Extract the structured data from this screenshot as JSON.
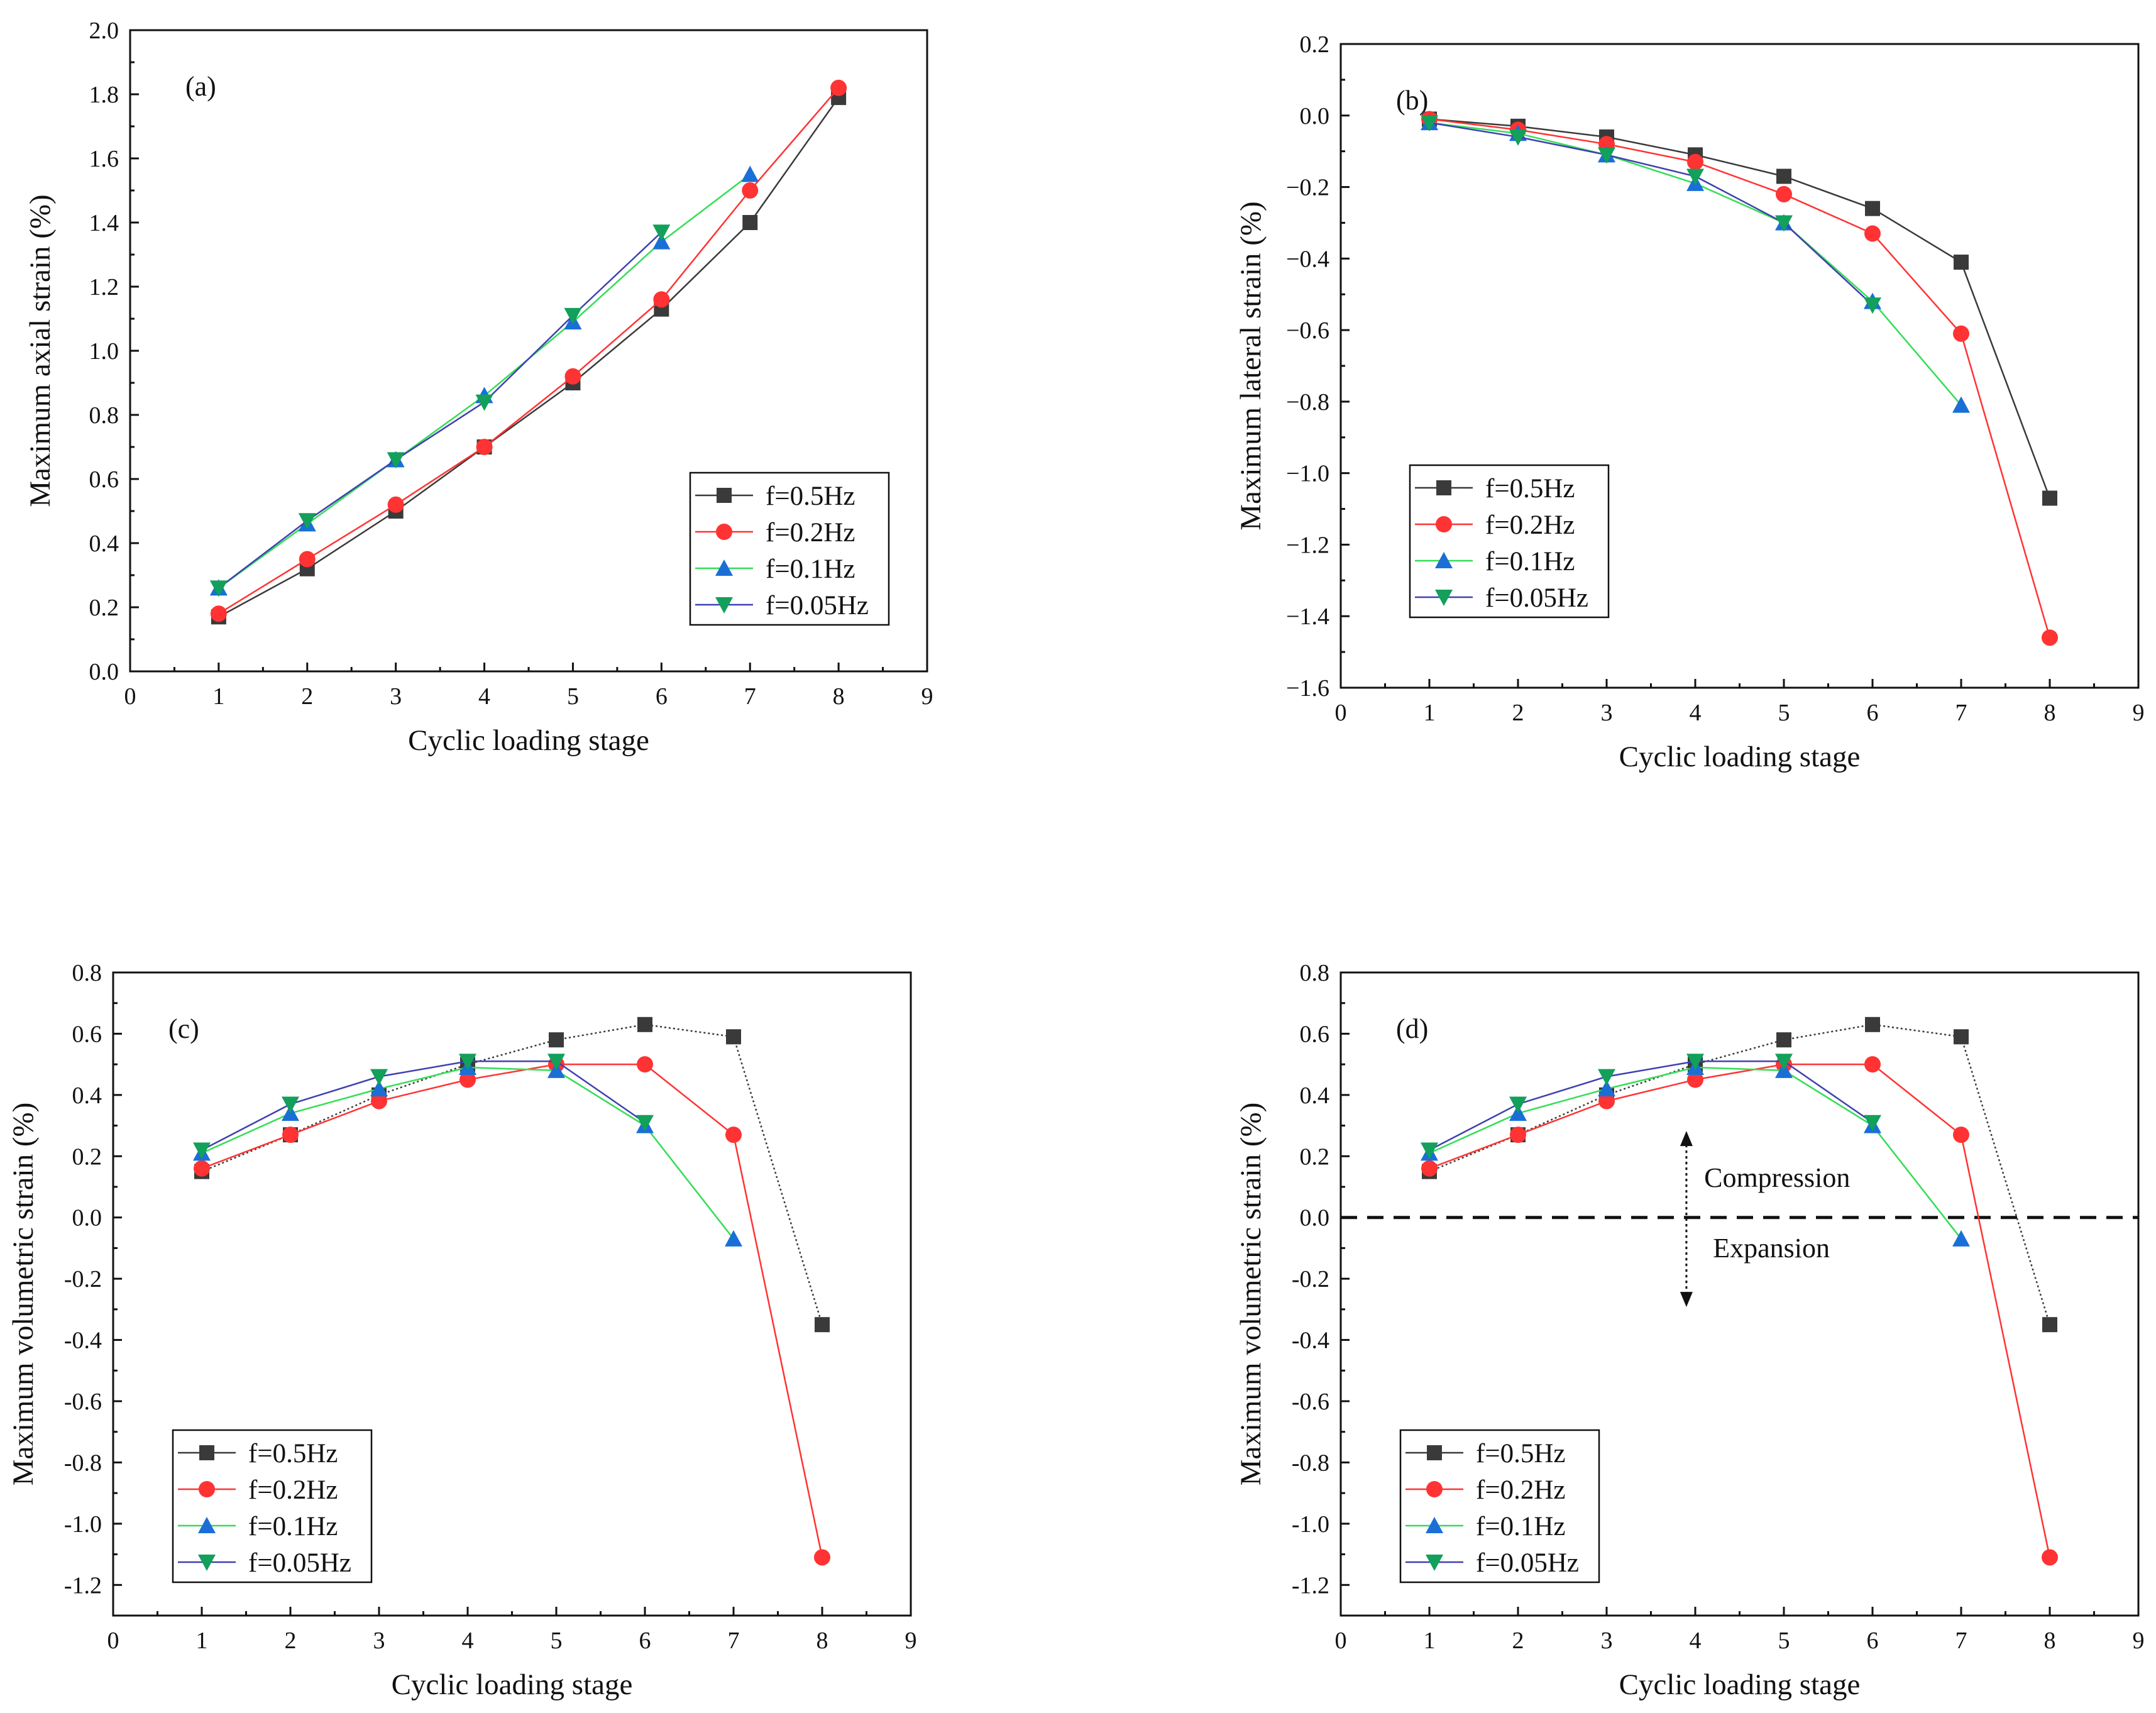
{
  "chart_data": [
    {
      "type": "line",
      "panel_label": "(a)",
      "xlabel": "Cyclic loading stage",
      "ylabel": "Maximum axial strain (%)",
      "xlim": [
        0,
        9
      ],
      "ylim": [
        0.0,
        2.0
      ],
      "xticks": [
        "0",
        "1",
        "2",
        "3",
        "4",
        "5",
        "6",
        "7",
        "8",
        "9"
      ],
      "yticks": [
        "0.0",
        "0.2",
        "0.4",
        "0.6",
        "0.8",
        "1.0",
        "1.2",
        "1.4",
        "1.6",
        "1.8",
        "2.0"
      ],
      "grid": false,
      "legend_position": "center-right",
      "series": [
        {
          "name": "f=0.5Hz",
          "x": [
            1,
            2,
            3,
            4,
            5,
            6,
            7,
            8
          ],
          "values": [
            0.17,
            0.32,
            0.5,
            0.7,
            0.9,
            1.13,
            1.4,
            1.79
          ]
        },
        {
          "name": "f=0.2Hz",
          "x": [
            1,
            2,
            3,
            4,
            5,
            6,
            7,
            8
          ],
          "values": [
            0.18,
            0.35,
            0.52,
            0.7,
            0.92,
            1.16,
            1.5,
            1.82
          ]
        },
        {
          "name": "f=0.1Hz",
          "x": [
            1,
            2,
            3,
            4,
            5,
            6,
            7
          ],
          "values": [
            0.26,
            0.46,
            0.66,
            0.86,
            1.09,
            1.34,
            1.55
          ]
        },
        {
          "name": "f=0.05Hz",
          "x": [
            1,
            2,
            3,
            4,
            5,
            6
          ],
          "values": [
            0.26,
            0.47,
            0.66,
            0.84,
            1.11,
            1.37
          ]
        }
      ]
    },
    {
      "type": "line",
      "panel_label": "(b)",
      "xlabel": "Cyclic loading stage",
      "ylabel": "Maximum lateral strain (%)",
      "xlim": [
        0,
        9
      ],
      "ylim": [
        -1.6,
        0.2
      ],
      "xticks": [
        "0",
        "1",
        "2",
        "3",
        "4",
        "5",
        "6",
        "7",
        "8",
        "9"
      ],
      "yticks": [
        "−1.6",
        "−1.4",
        "−1.2",
        "−1.0",
        "−0.8",
        "−0.6",
        "−0.4",
        "−0.2",
        "0.0",
        "0.2"
      ],
      "grid": false,
      "legend_position": "center-left",
      "series": [
        {
          "name": "f=0.5Hz",
          "x": [
            1,
            2,
            3,
            4,
            5,
            6,
            7,
            8
          ],
          "values": [
            -0.01,
            -0.03,
            -0.06,
            -0.11,
            -0.17,
            -0.26,
            -0.41,
            -1.07
          ]
        },
        {
          "name": "f=0.2Hz",
          "x": [
            1,
            2,
            3,
            4,
            5,
            6,
            7,
            8
          ],
          "values": [
            -0.01,
            -0.04,
            -0.08,
            -0.13,
            -0.22,
            -0.33,
            -0.61,
            -1.46
          ]
        },
        {
          "name": "f=0.1Hz",
          "x": [
            1,
            2,
            3,
            4,
            5,
            6,
            7
          ],
          "values": [
            -0.02,
            -0.05,
            -0.11,
            -0.19,
            -0.3,
            -0.52,
            -0.81
          ]
        },
        {
          "name": "f=0.05Hz",
          "x": [
            1,
            2,
            3,
            4,
            5,
            6
          ],
          "values": [
            -0.02,
            -0.06,
            -0.11,
            -0.17,
            -0.3,
            -0.53
          ]
        }
      ]
    },
    {
      "type": "line",
      "panel_label": "(c)",
      "xlabel": "Cyclic loading stage",
      "ylabel": "Maximum volumetric strain (%)",
      "xlim": [
        0,
        9
      ],
      "ylim": [
        -1.3,
        0.8
      ],
      "xticks": [
        "0",
        "1",
        "2",
        "3",
        "4",
        "5",
        "6",
        "7",
        "8",
        "9"
      ],
      "yticks": [
        "-1.2",
        "-1.0",
        "-0.8",
        "-0.6",
        "-0.4",
        "-0.2",
        "0.0",
        "0.2",
        "0.4",
        "0.6",
        "0.8"
      ],
      "grid": false,
      "legend_position": "bottom-left",
      "series": [
        {
          "name": "f=0.5Hz",
          "x": [
            1,
            2,
            3,
            4,
            5,
            6,
            7,
            8
          ],
          "values": [
            0.15,
            0.27,
            0.4,
            0.5,
            0.58,
            0.63,
            0.59,
            -0.35
          ]
        },
        {
          "name": "f=0.2Hz",
          "x": [
            1,
            2,
            3,
            4,
            5,
            6,
            7,
            8
          ],
          "values": [
            0.16,
            0.27,
            0.38,
            0.45,
            0.5,
            0.5,
            0.27,
            -1.11
          ]
        },
        {
          "name": "f=0.1Hz",
          "x": [
            1,
            2,
            3,
            4,
            5,
            6,
            7
          ],
          "values": [
            0.21,
            0.34,
            0.42,
            0.49,
            0.48,
            0.3,
            -0.07
          ]
        },
        {
          "name": "f=0.05Hz",
          "x": [
            1,
            2,
            3,
            4,
            5,
            6
          ],
          "values": [
            0.22,
            0.37,
            0.46,
            0.51,
            0.51,
            0.31
          ]
        }
      ]
    },
    {
      "type": "line",
      "panel_label": "(d)",
      "xlabel": "Cyclic loading stage",
      "ylabel": "Maximum volumetric strain (%)",
      "xlim": [
        0,
        9
      ],
      "ylim": [
        -1.3,
        0.8
      ],
      "xticks": [
        "0",
        "1",
        "2",
        "3",
        "4",
        "5",
        "6",
        "7",
        "8",
        "9"
      ],
      "yticks": [
        "-1.2",
        "-1.0",
        "-0.8",
        "-0.6",
        "-0.4",
        "-0.2",
        "0.0",
        "0.2",
        "0.4",
        "0.6",
        "0.8"
      ],
      "grid": false,
      "legend_position": "bottom-left",
      "reference_line": {
        "y": 0.0,
        "style": "dashed"
      },
      "annotations": [
        {
          "text": "Compression",
          "x": 4.1,
          "y": 0.1
        },
        {
          "text": "Expansion",
          "x": 4.2,
          "y": -0.13
        }
      ],
      "annotation_arrow": {
        "x": 3.9,
        "y_top": 0.27,
        "y_bottom": -0.28
      },
      "series": [
        {
          "name": "f=0.5Hz",
          "x": [
            1,
            2,
            3,
            4,
            5,
            6,
            7,
            8
          ],
          "values": [
            0.15,
            0.27,
            0.4,
            0.5,
            0.58,
            0.63,
            0.59,
            -0.35
          ]
        },
        {
          "name": "f=0.2Hz",
          "x": [
            1,
            2,
            3,
            4,
            5,
            6,
            7,
            8
          ],
          "values": [
            0.16,
            0.27,
            0.38,
            0.45,
            0.5,
            0.5,
            0.27,
            -1.11
          ]
        },
        {
          "name": "f=0.1Hz",
          "x": [
            1,
            2,
            3,
            4,
            5,
            6,
            7
          ],
          "values": [
            0.21,
            0.34,
            0.42,
            0.49,
            0.48,
            0.3,
            -0.07
          ]
        },
        {
          "name": "f=0.05Hz",
          "x": [
            1,
            2,
            3,
            4,
            5,
            6
          ],
          "values": [
            0.22,
            0.37,
            0.46,
            0.51,
            0.51,
            0.31
          ]
        }
      ]
    }
  ],
  "series_styles": [
    {
      "color": "#3a3a3a",
      "marker": "square"
    },
    {
      "color": "#ff3333",
      "marker": "circle"
    },
    {
      "color": "#1a6fd6",
      "marker": "triangle-up"
    },
    {
      "color": "#12a05a",
      "marker": "triangle-down"
    }
  ],
  "series_line_colors": [
    "#3a3a3a",
    "#ff3333",
    "#33dd55",
    "#4040b0"
  ]
}
